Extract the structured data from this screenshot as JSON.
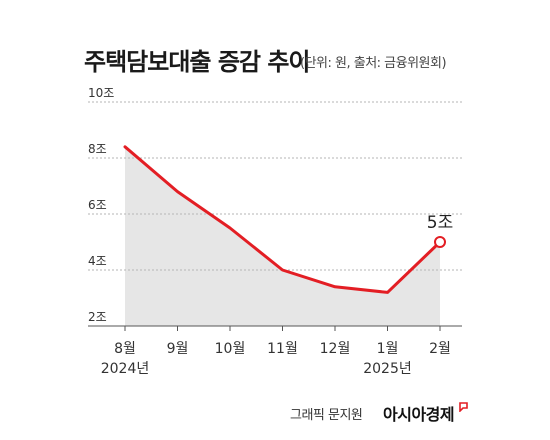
{
  "title": "주택담보대출 증감 추이",
  "subtitle": "(단위: 원, 출처: 금융위원회)",
  "credit": "그래픽 문지원",
  "brand": "아시아경제",
  "chart_data": {
    "type": "area",
    "categories": [
      "8월",
      "9월",
      "10월",
      "11월",
      "12월",
      "1월",
      "2월"
    ],
    "year_labels": [
      {
        "index": 0,
        "text": "2024년"
      },
      {
        "index": 5,
        "text": "2025년"
      }
    ],
    "values": [
      8.4,
      6.8,
      5.5,
      4.0,
      3.4,
      3.2,
      5.0
    ],
    "y_ticks": [
      {
        "value": 10,
        "label": "10조"
      },
      {
        "value": 8,
        "label": "8조"
      },
      {
        "value": 6,
        "label": "6조"
      },
      {
        "value": 4,
        "label": "4조"
      },
      {
        "value": 2,
        "label": "2조"
      }
    ],
    "ylim": [
      2,
      10
    ],
    "grid": true,
    "annotation": {
      "index": 6,
      "text": "5조"
    },
    "colors": {
      "line": "#e31e24",
      "area": "#e6e6e6",
      "grid": "#b5b5b5",
      "marker_fill": "#ffffff"
    }
  }
}
